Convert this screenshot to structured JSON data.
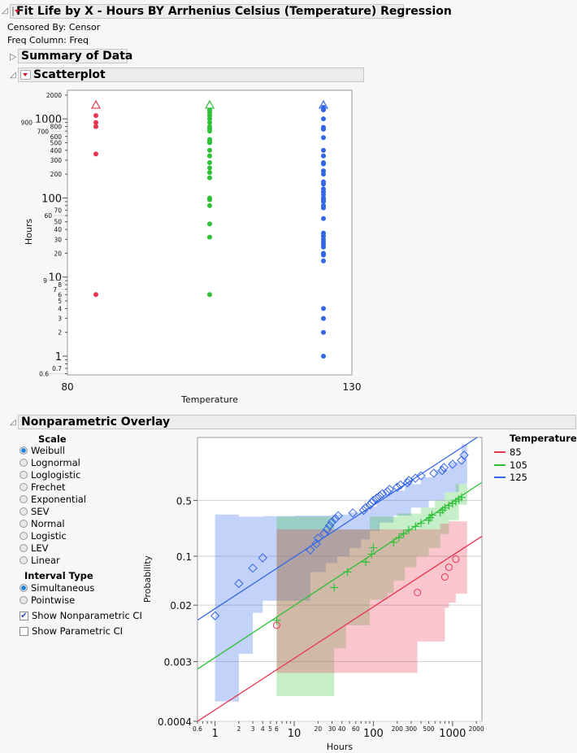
{
  "report": {
    "title": "Fit Life by X - Hours BY Arrhenius Celsius (Temperature) Regression",
    "censored_by": "Censored By: Censor",
    "freq_column": "Freq Column: Freq"
  },
  "sections": {
    "summary": "Summary of Data",
    "scatterplot": "Scatterplot",
    "nonparametric": "Nonparametric Overlay"
  },
  "controls": {
    "scale_label": "Scale",
    "scale_options": [
      "Weibull",
      "Lognormal",
      "Loglogistic",
      "Frechet",
      "Exponential",
      "SEV",
      "Normal",
      "Logistic",
      "LEV",
      "Linear"
    ],
    "scale_selected": "Weibull",
    "interval_label": "Interval Type",
    "interval_options": [
      "Simultaneous",
      "Pointwise"
    ],
    "interval_selected": "Simultaneous",
    "show_nonparametric_ci": {
      "label": "Show Nonparametric CI",
      "checked": true
    },
    "show_parametric_ci": {
      "label": "Show Parametric CI",
      "checked": false
    }
  },
  "colors": {
    "85": "#e8344e",
    "105": "#2fbf38",
    "125": "#3366e6"
  },
  "chart_data": [
    {
      "type": "scatter",
      "xlabel": "Temperature",
      "ylabel": "Hours",
      "xlim": [
        80,
        130
      ],
      "ylim": [
        0.58,
        2300
      ],
      "yscale": "log",
      "x_tick_labels": [
        "80",
        "130"
      ],
      "y_tick_labels_major": [
        "1",
        "10",
        "100",
        "1000"
      ],
      "y_tick_labels_minor": [
        "0.6",
        "0.7",
        "2",
        "3",
        "4",
        "5",
        "6",
        "7",
        "8",
        "9",
        "20",
        "30",
        "40",
        "50",
        "60",
        "70",
        "200",
        "300",
        "400",
        "500",
        "600",
        "700",
        "800",
        "900",
        "2000"
      ],
      "series": [
        {
          "temp": 85,
          "failures": [
            6,
            360,
            800,
            900,
            1100
          ],
          "censored": [
            1500
          ]
        },
        {
          "temp": 105,
          "failures": [
            6,
            32,
            47,
            80,
            95,
            100,
            180,
            210,
            240,
            280,
            340,
            400,
            500,
            520,
            550,
            700,
            750,
            800,
            900,
            1000,
            1100,
            1200,
            1300
          ],
          "censored": [
            1500
          ]
        },
        {
          "temp": 125,
          "failures": [
            1,
            2,
            3,
            4,
            16,
            19,
            20,
            24,
            26,
            28,
            30,
            33,
            36,
            55,
            75,
            80,
            90,
            95,
            100,
            110,
            120,
            130,
            150,
            160,
            200,
            220,
            270,
            280,
            340,
            400,
            580,
            740,
            780,
            1000,
            1300,
            1400
          ],
          "censored": [
            1500
          ]
        }
      ]
    },
    {
      "type": "line",
      "xlabel": "Hours",
      "ylabel": "Probability",
      "xscale": "log",
      "yscale": "weibull",
      "xlim": [
        0.6,
        2350
      ],
      "ylim": [
        0.0004,
        0.997
      ],
      "grid": true,
      "legend": {
        "title": "Temperature",
        "placement": "right",
        "entries": [
          "85",
          "105",
          "125"
        ]
      },
      "x_tick_labels_major": [
        "1",
        "10",
        "100",
        "1000"
      ],
      "x_tick_labels_minor": [
        "0.6",
        "2",
        "3",
        "4",
        "5",
        "6",
        "20",
        "30",
        "40",
        "60",
        "200",
        "300",
        "500",
        "2000"
      ],
      "y_tick_labels": [
        "0.0004",
        "0.003",
        "0.02",
        "0.1",
        "0.5"
      ],
      "series": [
        {
          "name": "85",
          "marker": "circle",
          "points": [
            [
              6,
              0.0102
            ],
            [
              360,
              0.0305
            ],
            [
              800,
              0.051
            ],
            [
              900,
              0.07
            ],
            [
              1100,
              0.091
            ]
          ],
          "fit_line": [
            [
              0.6,
              0.0004
            ],
            [
              2350,
              0.187
            ]
          ],
          "band": {
            "xmax": 1530,
            "upper": [
              [
                6,
                0.23
              ],
              [
                700,
                0.27
              ],
              [
                900,
                0.29
              ]
            ],
            "lower": [
              [
                6,
                0.00205
              ],
              [
                360,
                0.0059
              ],
              [
                800,
                0.0183
              ],
              [
                900,
                0.0218
              ],
              [
                1100,
                0.0293
              ]
            ]
          }
        },
        {
          "name": "105",
          "marker": "plus",
          "points": [
            [
              6,
              0.012
            ],
            [
              32,
              0.036
            ],
            [
              47,
              0.06
            ],
            [
              80,
              0.083
            ],
            [
              95,
              0.107
            ],
            [
              100,
              0.131
            ],
            [
              180,
              0.155
            ],
            [
              210,
              0.179
            ],
            [
              240,
              0.202
            ],
            [
              280,
              0.226
            ],
            [
              340,
              0.25
            ],
            [
              400,
              0.274
            ],
            [
              500,
              0.298
            ],
            [
              520,
              0.321
            ],
            [
              550,
              0.345
            ],
            [
              700,
              0.369
            ],
            [
              750,
              0.393
            ],
            [
              800,
              0.417
            ],
            [
              900,
              0.44
            ],
            [
              1000,
              0.464
            ],
            [
              1100,
              0.488
            ],
            [
              1200,
              0.512
            ],
            [
              1300,
              0.536
            ]
          ],
          "fit_line": [
            [
              0.6,
              0.00233
            ],
            [
              2350,
              0.72
            ]
          ],
          "band": {
            "xmax": 1530,
            "upper": [
              [
                6,
                0.33
              ],
              [
                32,
                0.23
              ],
              [
                90,
                0.33
              ],
              [
                200,
                0.36
              ],
              [
                400,
                0.42
              ],
              [
                600,
                0.5
              ],
              [
                800,
                0.6
              ],
              [
                1100,
                0.7
              ]
            ],
            "lower": [
              [
                6,
                0.00094
              ],
              [
                32,
                0.0047
              ],
              [
                45,
                0.0102
              ],
              [
                90,
                0.024
              ],
              [
                150,
                0.03
              ],
              [
                180,
                0.045
              ],
              [
                250,
                0.07
              ],
              [
                350,
                0.1
              ],
              [
                500,
                0.13
              ],
              [
                700,
                0.2
              ],
              [
                900,
                0.3
              ],
              [
                1200,
                0.45
              ]
            ]
          }
        },
        {
          "name": "125",
          "marker": "diamond",
          "points": [
            [
              1,
              0.014
            ],
            [
              2,
              0.041
            ],
            [
              3,
              0.068
            ],
            [
              4,
              0.095
            ],
            [
              16,
              0.122
            ],
            [
              19,
              0.149
            ],
            [
              20,
              0.176
            ],
            [
              24,
              0.203
            ],
            [
              26,
              0.23
            ],
            [
              28,
              0.257
            ],
            [
              30,
              0.284
            ],
            [
              33,
              0.311
            ],
            [
              36,
              0.338
            ],
            [
              55,
              0.365
            ],
            [
              75,
              0.392
            ],
            [
              80,
              0.419
            ],
            [
              90,
              0.446
            ],
            [
              95,
              0.473
            ],
            [
              100,
              0.5
            ],
            [
              110,
              0.527
            ],
            [
              120,
              0.554
            ],
            [
              130,
              0.581
            ],
            [
              150,
              0.608
            ],
            [
              160,
              0.635
            ],
            [
              200,
              0.662
            ],
            [
              220,
              0.689
            ],
            [
              270,
              0.716
            ],
            [
              280,
              0.743
            ],
            [
              340,
              0.77
            ],
            [
              400,
              0.797
            ],
            [
              580,
              0.824
            ],
            [
              740,
              0.851
            ],
            [
              780,
              0.878
            ],
            [
              1000,
              0.905
            ],
            [
              1300,
              0.932
            ],
            [
              1400,
              0.959
            ]
          ],
          "fit_line": [
            [
              0.6,
              0.0121
            ],
            [
              2040,
              0.997
            ]
          ],
          "band": {
            "xmax": 1530,
            "upper": [
              [
                1,
                0.35
              ],
              [
                2,
                0.33
              ],
              [
                4,
                0.335
              ],
              [
                10,
                0.34
              ],
              [
                30,
                0.35
              ],
              [
                50,
                0.37
              ],
              [
                70,
                0.39
              ],
              [
                90,
                0.43
              ],
              [
                110,
                0.5
              ],
              [
                130,
                0.56
              ],
              [
                160,
                0.62
              ],
              [
                250,
                0.7
              ],
              [
                400,
                0.78
              ],
              [
                600,
                0.86
              ],
              [
                900,
                0.92
              ],
              [
                1300,
                0.99
              ]
            ],
            "lower": [
              [
                1,
                0.00078
              ],
              [
                2,
                0.0039
              ],
              [
                3,
                0.0155
              ],
              [
                4,
                0.0232
              ],
              [
                16,
                0.06
              ],
              [
                25,
                0.08
              ],
              [
                35,
                0.1
              ],
              [
                50,
                0.13
              ],
              [
                70,
                0.17
              ],
              [
                90,
                0.22
              ],
              [
                120,
                0.28
              ],
              [
                180,
                0.34
              ],
              [
                300,
                0.42
              ],
              [
                500,
                0.5
              ],
              [
                800,
                0.6
              ],
              [
                1200,
                0.7
              ]
            ]
          }
        }
      ]
    }
  ]
}
